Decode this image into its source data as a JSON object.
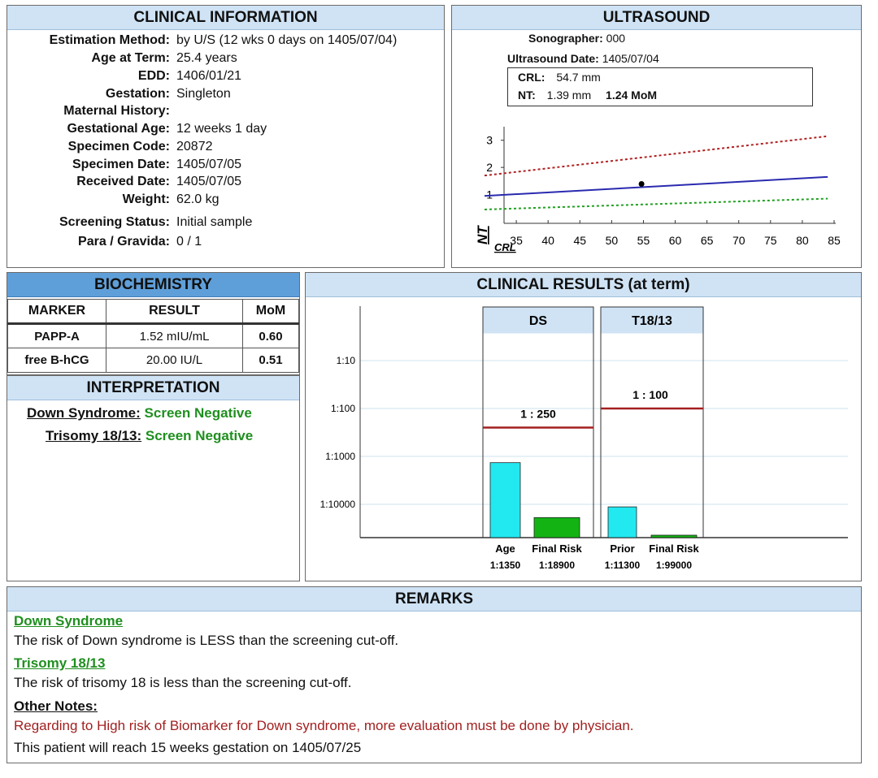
{
  "clinical": {
    "title": "CLINICAL INFORMATION",
    "rows": [
      {
        "label": "Estimation Method:",
        "value": "by U/S (12 wks 0 days on 1405/07/04)"
      },
      {
        "label": "Age at Term:",
        "value": "25.4 years"
      },
      {
        "label": "EDD:",
        "value": "1406/01/21"
      },
      {
        "label": "Gestation:",
        "value": "Singleton"
      },
      {
        "label": "Maternal History:",
        "value": ""
      },
      {
        "label": "Gestational Age:",
        "value": "12 weeks 1 day"
      },
      {
        "label": "Specimen Code:",
        "value": "20872"
      },
      {
        "label": "Specimen Date:",
        "value": "1405/07/05"
      },
      {
        "label": "Received Date:",
        "value": "1405/07/05"
      },
      {
        "label": "Weight:",
        "value": "62.0 kg"
      },
      {
        "label": "Screening Status:",
        "value": "Initial sample"
      },
      {
        "label": "Para / Gravida:",
        "value": "0 / 1"
      }
    ]
  },
  "ultrasound": {
    "title": "ULTRASOUND",
    "sonographer_label": "Sonographer:",
    "sonographer": "000",
    "date_label": "Ultrasound Date:",
    "date": "1405/07/04",
    "crl_label": "CRL:",
    "crl": "54.7 mm",
    "nt_label": "NT:",
    "nt": "1.39  mm",
    "nt_mom": "1.24 MoM",
    "chart": {
      "y_label": "NT",
      "x_label": "CRL",
      "x_ticks": [
        "35",
        "40",
        "45",
        "50",
        "55",
        "60",
        "65",
        "70",
        "75",
        "80",
        "85"
      ],
      "y_ticks": [
        "1",
        "2",
        "3"
      ],
      "upper_color": "#b02020",
      "median_color": "#2a2ab0",
      "lower_color": "#20a020"
    }
  },
  "chart_data": [
    {
      "type": "line",
      "x_label": "CRL",
      "y_label": "NT",
      "xlim": [
        30,
        85
      ],
      "ylim": [
        0,
        3.5
      ],
      "series": [
        {
          "x": [
            30,
            84
          ],
          "y": [
            1.7,
            3.15
          ]
        },
        {
          "x": [
            30,
            84
          ],
          "y": [
            0.95,
            1.65
          ]
        },
        {
          "x": [
            30,
            84
          ],
          "y": [
            0.45,
            0.85
          ]
        }
      ],
      "points": [
        {
          "x": 54.7,
          "y": 1.39
        }
      ]
    },
    {
      "type": "bar",
      "title": "CLINICAL RESULTS (at term)",
      "y_scale": "log (risk 1:N)",
      "y_ticks": [
        "1:10",
        "1:100",
        "1:1000",
        "1:10000"
      ],
      "groups": [
        {
          "name": "DS",
          "cutoff_label": "1 : 250",
          "cutoff": 250,
          "bars": [
            {
              "label": "Age",
              "value_label": "1:1350",
              "value": 1350,
              "color": "#22e8f0"
            },
            {
              "label": "Final Risk",
              "value_label": "1:18900",
              "value": 18900,
              "color": "#14b314"
            }
          ]
        },
        {
          "name": "T18/13",
          "cutoff_label": "1 : 100",
          "cutoff": 100,
          "bars": [
            {
              "label": "Prior",
              "value_label": "1:11300",
              "value": 11300,
              "color": "#22e8f0"
            },
            {
              "label": "Final Risk",
              "value_label": "1:99000",
              "value": 99000,
              "color": "#14b314"
            }
          ]
        }
      ]
    }
  ],
  "biochemistry": {
    "title": "BIOCHEMISTRY",
    "headers": [
      "MARKER",
      "RESULT",
      "MoM"
    ],
    "rows": [
      [
        "PAPP-A",
        "1.52 mIU/mL",
        "0.60"
      ],
      [
        "free B-hCG",
        "20.00 IU/L",
        "0.51"
      ]
    ]
  },
  "interpretation": {
    "title": "INTERPRETATION",
    "rows": [
      {
        "label": "Down Syndrome:",
        "value": "Screen Negative"
      },
      {
        "label": "Trisomy 18/13:",
        "value": "Screen Negative"
      }
    ]
  },
  "results": {
    "title": "CLINICAL RESULTS (at term)"
  },
  "remarks": {
    "title": "REMARKS",
    "ds_head": "Down Syndrome",
    "ds_text": "The risk of Down syndrome is LESS than the screening cut-off.",
    "t18_head": "Trisomy 18/13",
    "t18_text": "The risk of trisomy 18 is less than the screening cut-off.",
    "other_head": "Other Notes:",
    "other_red": "Regarding to High risk of Biomarker for Down syndrome, more evaluation must be done by physician.",
    "other_text": "This patient will reach 15 weeks gestation on 1405/07/25"
  }
}
